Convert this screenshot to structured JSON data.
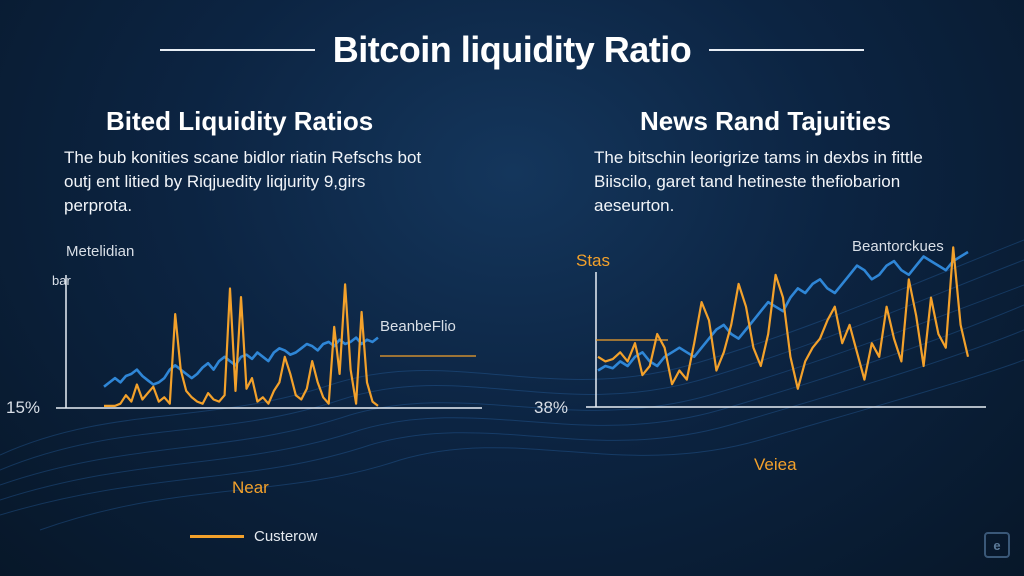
{
  "header": {
    "title": "Bitcoin liquidity Ratio"
  },
  "panels": [
    {
      "title": "Bited Liquidity Ratios",
      "description": "The bub konities scane bidlor riatin Refschs bot outj ent litied by Riqjuedity liqjurity 9,girs perprota.",
      "top_label": "Metelidian",
      "axis_label": "bar",
      "baseline_label": "15%",
      "series_label": "BeanbeFlio",
      "xlabel": "Near"
    },
    {
      "title": "News Rand Tajuities",
      "description": "The bitschin leorigrize tams in dexbs in fittle Biiscilo, garet tand hetineste thefiobarion aeseurton.",
      "axis_label": "Stas",
      "baseline_label": "38%",
      "series_label": "Beantorckues",
      "xlabel": "Veiea"
    }
  ],
  "legend": {
    "label": "Custerow"
  },
  "colors": {
    "series_orange": "#f3a12b",
    "series_blue": "#2f86d6",
    "background": "#0c2442",
    "axis": "#e8eef5"
  },
  "chart_data": [
    {
      "type": "line",
      "x": [
        0,
        1,
        2,
        3,
        4,
        5,
        6,
        7,
        8,
        9,
        10,
        11,
        12,
        13,
        14,
        15,
        16,
        17,
        18,
        19,
        20,
        21,
        22,
        23,
        24,
        25,
        26,
        27,
        28,
        29,
        30,
        31,
        32,
        33,
        34,
        35,
        36,
        37,
        38,
        39,
        40,
        41,
        42,
        43,
        44,
        45,
        46,
        47,
        48,
        49,
        50
      ],
      "series": [
        {
          "values": [
            1,
            1,
            1,
            2,
            6,
            3,
            11,
            4,
            7,
            10,
            3,
            5,
            2,
            44,
            18,
            8,
            5,
            3,
            2,
            7,
            4,
            3,
            6,
            56,
            8,
            52,
            9,
            14,
            3,
            5,
            2,
            8,
            12,
            24,
            16,
            6,
            4,
            9,
            22,
            12,
            5,
            2,
            38,
            16,
            58,
            18,
            2,
            45,
            12,
            3,
            1
          ]
        },
        {
          "values": [
            10,
            12,
            14,
            12,
            15,
            16,
            18,
            15,
            13,
            11,
            12,
            14,
            18,
            20,
            18,
            16,
            14,
            16,
            19,
            21,
            18,
            22,
            24,
            22,
            20,
            24,
            25,
            23,
            26,
            24,
            22,
            26,
            28,
            27,
            25,
            26,
            28,
            30,
            29,
            27,
            30,
            31,
            29,
            32,
            30,
            31,
            33,
            30,
            32,
            31,
            33
          ]
        }
      ],
      "ylim": [
        0,
        60
      ]
    },
    {
      "type": "line",
      "x": [
        0,
        1,
        2,
        3,
        4,
        5,
        6,
        7,
        8,
        9,
        10,
        11,
        12,
        13,
        14,
        15,
        16,
        17,
        18,
        19,
        20,
        21,
        22,
        23,
        24,
        25,
        26,
        27,
        28,
        29,
        30,
        31,
        32,
        33,
        34,
        35,
        36,
        37,
        38,
        39,
        40,
        41,
        42,
        43,
        44,
        45,
        46,
        47,
        48,
        49,
        50
      ],
      "series": [
        {
          "values": [
            22,
            20,
            21,
            24,
            20,
            28,
            14,
            18,
            32,
            26,
            10,
            16,
            12,
            28,
            46,
            38,
            16,
            24,
            36,
            54,
            44,
            26,
            18,
            32,
            58,
            48,
            22,
            8,
            20,
            26,
            30,
            38,
            44,
            28,
            36,
            24,
            12,
            28,
            22,
            44,
            30,
            20,
            56,
            40,
            18,
            48,
            32,
            26,
            70,
            36,
            22
          ]
        },
        {
          "values": [
            16,
            18,
            17,
            20,
            18,
            22,
            24,
            20,
            18,
            22,
            24,
            26,
            24,
            22,
            26,
            30,
            34,
            36,
            32,
            30,
            34,
            38,
            42,
            46,
            44,
            42,
            48,
            52,
            50,
            54,
            56,
            52,
            50,
            54,
            58,
            62,
            60,
            56,
            58,
            62,
            64,
            60,
            58,
            62,
            66,
            64,
            62,
            60,
            64,
            66,
            68
          ]
        }
      ],
      "ylim": [
        0,
        75
      ]
    }
  ]
}
